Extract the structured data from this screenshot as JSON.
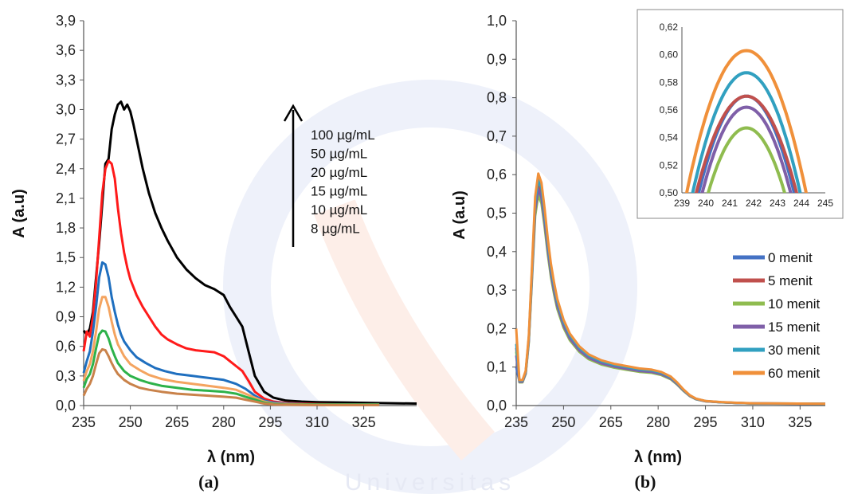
{
  "watermark": {
    "text": "Universitas"
  },
  "chart_data": [
    {
      "panel_label": "(a)",
      "type": "line",
      "xlabel": "λ (nm)",
      "ylabel": "A (a.u)",
      "xlim": [
        235,
        342
      ],
      "ylim": [
        0,
        3.9
      ],
      "x_ticks": [
        235,
        250,
        265,
        280,
        295,
        310,
        325
      ],
      "y_ticks": [
        0.0,
        0.3,
        0.6,
        0.9,
        1.2,
        1.5,
        1.8,
        2.1,
        2.4,
        2.7,
        3.0,
        3.3,
        3.6,
        3.9
      ],
      "y_tick_labels": [
        "0,0",
        "0,3",
        "0,6",
        "0,9",
        "1,2",
        "1,5",
        "1,8",
        "2,1",
        "2,4",
        "2,7",
        "3,0",
        "3,3",
        "3,6",
        "3,9"
      ],
      "x_tick_labels": [
        "235",
        "250",
        "265",
        "280",
        "295",
        "310",
        "325"
      ],
      "annotation_arrow": "up",
      "annotation_labels": [
        "100 µg/mL",
        "50 µg/mL",
        "20 µg/mL",
        "15 µg/mL",
        "10 µg/mL",
        "8 µg/mL"
      ],
      "series": [
        {
          "color": "#000000",
          "x": [
            235,
            236,
            237,
            238,
            239,
            240,
            241,
            242,
            243,
            244,
            245,
            246,
            247,
            248,
            249,
            250,
            251,
            252,
            254,
            256,
            258,
            260,
            262,
            265,
            268,
            271,
            274,
            277,
            280,
            282,
            284,
            286,
            288,
            290,
            293,
            296,
            300,
            305,
            310,
            320,
            330,
            342
          ],
          "y": [
            0.76,
            0.72,
            0.78,
            0.95,
            1.3,
            1.65,
            2.05,
            2.45,
            2.5,
            2.8,
            2.95,
            3.05,
            3.08,
            3.0,
            3.05,
            2.98,
            2.85,
            2.7,
            2.4,
            2.15,
            1.95,
            1.8,
            1.67,
            1.5,
            1.38,
            1.29,
            1.22,
            1.18,
            1.12,
            1.0,
            0.9,
            0.8,
            0.55,
            0.3,
            0.14,
            0.08,
            0.05,
            0.04,
            0.035,
            0.03,
            0.025,
            0.02
          ]
        },
        {
          "color": "#ff1a1a",
          "x": [
            235,
            236,
            237,
            238,
            239,
            240,
            241,
            242,
            243,
            244,
            245,
            246,
            247,
            248,
            249,
            250,
            252,
            254,
            256,
            258,
            260,
            262,
            265,
            268,
            271,
            274,
            277,
            280,
            282,
            284,
            286,
            288,
            290,
            293,
            296,
            300,
            305,
            310,
            320,
            330
          ],
          "y": [
            0.55,
            0.75,
            0.7,
            0.9,
            1.25,
            1.7,
            2.15,
            2.4,
            2.48,
            2.45,
            2.3,
            2.0,
            1.75,
            1.55,
            1.4,
            1.28,
            1.12,
            1.0,
            0.9,
            0.8,
            0.72,
            0.67,
            0.62,
            0.58,
            0.56,
            0.55,
            0.54,
            0.5,
            0.45,
            0.4,
            0.35,
            0.25,
            0.14,
            0.07,
            0.04,
            0.025,
            0.02,
            0.015,
            0.01,
            0.01
          ]
        },
        {
          "color": "#1f6fbf",
          "x": [
            235,
            236,
            237,
            238,
            239,
            240,
            241,
            242,
            243,
            244,
            245,
            246,
            247,
            248,
            250,
            252,
            255,
            258,
            261,
            265,
            270,
            275,
            280,
            284,
            287,
            290,
            293,
            296,
            300,
            310,
            320,
            330
          ],
          "y": [
            0.33,
            0.45,
            0.55,
            0.75,
            1.0,
            1.3,
            1.45,
            1.43,
            1.3,
            1.1,
            0.95,
            0.82,
            0.72,
            0.65,
            0.56,
            0.49,
            0.43,
            0.38,
            0.35,
            0.32,
            0.3,
            0.28,
            0.26,
            0.22,
            0.17,
            0.1,
            0.05,
            0.03,
            0.02,
            0.01,
            0.01,
            0.01
          ]
        },
        {
          "color": "#f4a460",
          "x": [
            235,
            236,
            237,
            238,
            239,
            240,
            241,
            242,
            243,
            244,
            245,
            246,
            248,
            250,
            253,
            256,
            260,
            265,
            270,
            275,
            280,
            284,
            287,
            290,
            293,
            296,
            300,
            310,
            320,
            330
          ],
          "y": [
            0.25,
            0.35,
            0.42,
            0.55,
            0.75,
            0.98,
            1.1,
            1.1,
            1.0,
            0.85,
            0.72,
            0.62,
            0.5,
            0.42,
            0.36,
            0.31,
            0.27,
            0.24,
            0.22,
            0.2,
            0.18,
            0.16,
            0.12,
            0.08,
            0.04,
            0.02,
            0.015,
            0.01,
            0.01,
            0.01
          ]
        },
        {
          "color": "#2db24a",
          "x": [
            235,
            236,
            237,
            238,
            239,
            240,
            241,
            242,
            243,
            244,
            245,
            246,
            248,
            250,
            253,
            256,
            260,
            265,
            270,
            275,
            280,
            284,
            287,
            290,
            293,
            296,
            300,
            310,
            320,
            330
          ],
          "y": [
            0.18,
            0.27,
            0.32,
            0.42,
            0.58,
            0.72,
            0.76,
            0.75,
            0.68,
            0.58,
            0.5,
            0.43,
            0.35,
            0.3,
            0.26,
            0.23,
            0.2,
            0.18,
            0.16,
            0.15,
            0.14,
            0.12,
            0.09,
            0.06,
            0.03,
            0.015,
            0.01,
            0.01,
            0.01,
            0.01
          ]
        },
        {
          "color": "#c9824a",
          "x": [
            235,
            236,
            237,
            238,
            239,
            240,
            241,
            242,
            243,
            244,
            245,
            246,
            248,
            250,
            253,
            256,
            260,
            265,
            270,
            275,
            280,
            284,
            287,
            290,
            293,
            296,
            300,
            310,
            320,
            330
          ],
          "y": [
            0.1,
            0.17,
            0.22,
            0.3,
            0.42,
            0.53,
            0.57,
            0.56,
            0.5,
            0.43,
            0.37,
            0.32,
            0.26,
            0.22,
            0.18,
            0.16,
            0.14,
            0.12,
            0.11,
            0.1,
            0.09,
            0.08,
            0.06,
            0.04,
            0.02,
            0.01,
            0.008,
            0.005,
            0.005,
            0.005
          ]
        }
      ]
    },
    {
      "panel_label": "(b)",
      "type": "line",
      "xlabel": "λ (nm)",
      "ylabel": "A (a.u)",
      "xlim": [
        235,
        333
      ],
      "ylim": [
        0,
        1.0
      ],
      "x_ticks": [
        235,
        250,
        265,
        280,
        295,
        310,
        325
      ],
      "y_ticks": [
        0.0,
        0.1,
        0.2,
        0.3,
        0.4,
        0.5,
        0.6,
        0.7,
        0.8,
        0.9,
        1.0
      ],
      "y_tick_labels": [
        "0,0",
        "0,1",
        "0,2",
        "0,3",
        "0,4",
        "0,5",
        "0,6",
        "0,7",
        "0,8",
        "0,9",
        "1,0"
      ],
      "x_tick_labels": [
        "235",
        "250",
        "265",
        "280",
        "295",
        "310",
        "325"
      ],
      "legend": {
        "position": "right",
        "entries": [
          "0 menit",
          "5 menit",
          "10 menit",
          "15 menit",
          "30 menit",
          "60 menit"
        ]
      },
      "series": [
        {
          "name": "0 menit",
          "color": "#4472c4",
          "peak": 0.57,
          "base": 0.1
        },
        {
          "name": "5 menit",
          "color": "#c0504d",
          "peak": 0.57,
          "base": 0.15
        },
        {
          "name": "10 menit",
          "color": "#8fbc4f",
          "peak": 0.547,
          "base": 0.14
        },
        {
          "name": "15 menit",
          "color": "#7f5fa8",
          "peak": 0.562,
          "base": 0.13
        },
        {
          "name": "30 menit",
          "color": "#31a0c0",
          "peak": 0.587,
          "base": 0.16
        },
        {
          "name": "60 menit",
          "color": "#f0903a",
          "peak": 0.603,
          "base": 0.2
        }
      ],
      "shape_x": [
        235,
        236,
        237,
        238,
        239,
        240,
        241,
        242,
        243,
        244,
        245,
        246,
        247,
        248,
        250,
        252,
        255,
        258,
        262,
        266,
        270,
        274,
        278,
        281,
        284,
        286,
        288,
        290,
        292,
        295,
        300,
        305,
        310,
        320,
        333
      ],
      "shape_y": [
        1.0,
        1.1,
        1.1,
        1.5,
        3.0,
        6.0,
        9.0,
        10.0,
        9.6,
        8.5,
        7.2,
        6.1,
        5.3,
        4.6,
        3.7,
        3.1,
        2.55,
        2.2,
        1.95,
        1.8,
        1.7,
        1.6,
        1.55,
        1.45,
        1.25,
        1.0,
        0.7,
        0.45,
        0.3,
        0.2,
        0.15,
        0.12,
        0.1,
        0.09,
        0.08
      ],
      "inset": {
        "xlim": [
          239,
          245
        ],
        "ylim": [
          0.5,
          0.62
        ],
        "x_ticks": [
          239,
          240,
          241,
          242,
          243,
          244,
          245
        ],
        "x_tick_labels": [
          "239",
          "240",
          "241",
          "242",
          "243",
          "244",
          "245"
        ],
        "y_ticks": [
          0.5,
          0.52,
          0.54,
          0.56,
          0.58,
          0.6,
          0.62
        ],
        "y_tick_labels": [
          "0,50",
          "0,52",
          "0,54",
          "0,56",
          "0,58",
          "0,60",
          "0,62"
        ],
        "peak_x": 241.7,
        "half_width_at_050": [
          2.0,
          2.1,
          1.6,
          1.85,
          2.25,
          2.5
        ]
      }
    }
  ]
}
